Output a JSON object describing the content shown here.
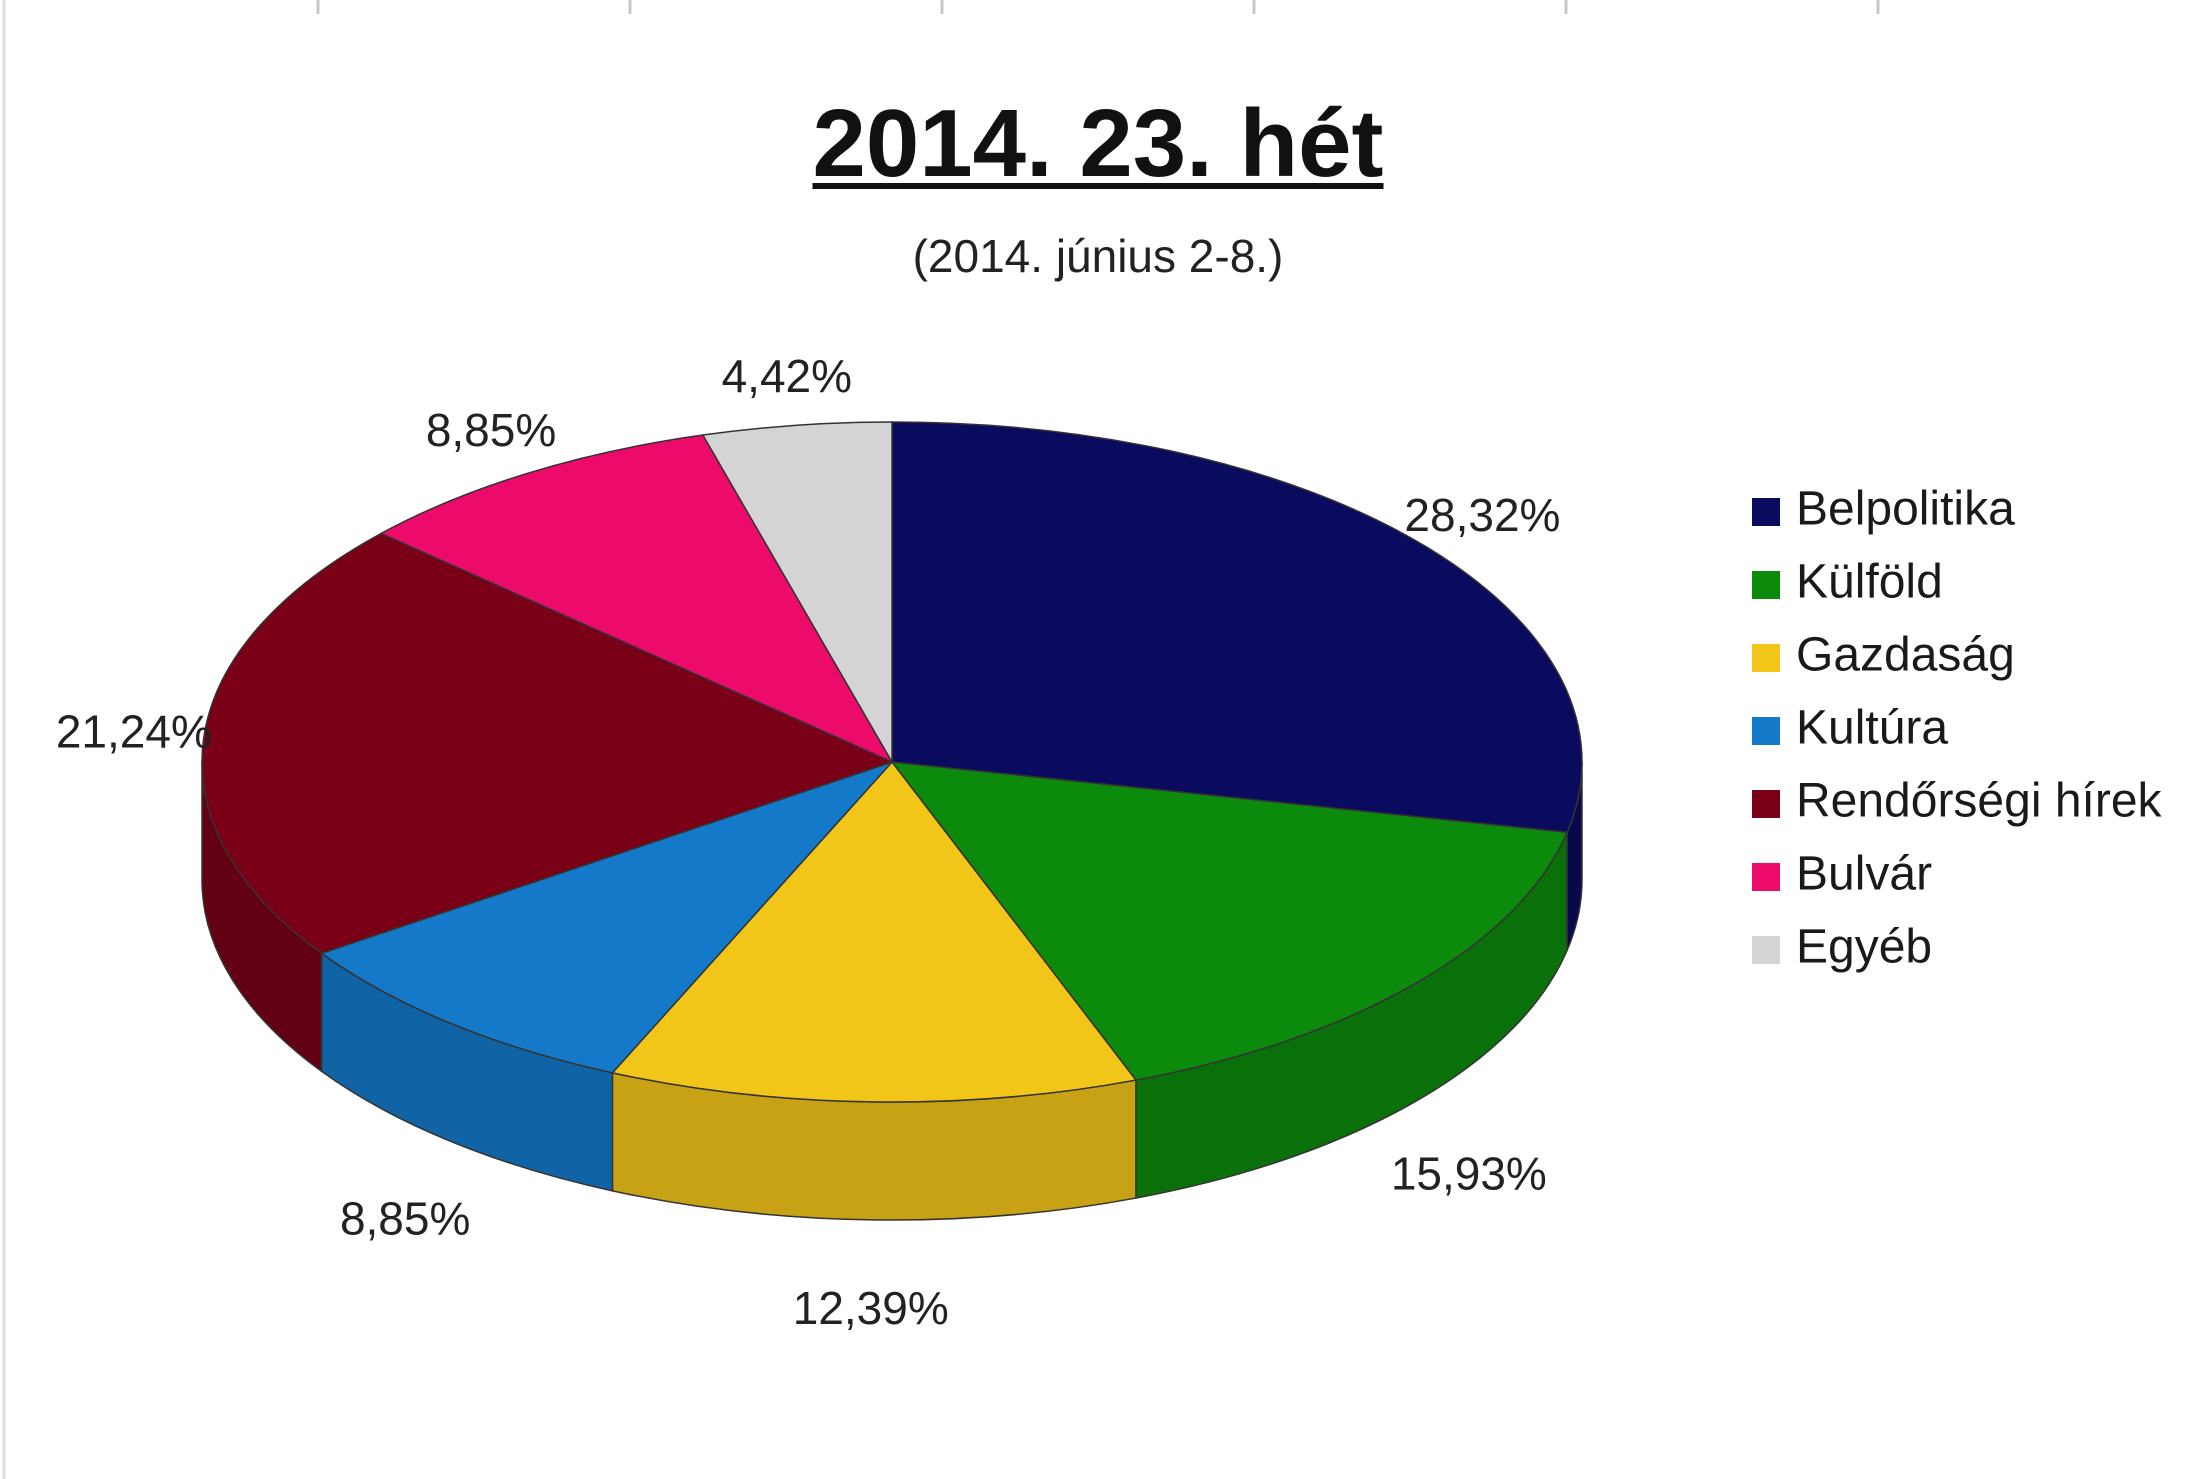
{
  "chart_data": {
    "type": "pie",
    "title": "2014. 23. hét",
    "subtitle": "(2014. június 2-8.)",
    "categories": [
      "Belpolitika",
      "Külföld",
      "Gazdaság",
      "Kultúra",
      "Rendőrségi hírek",
      "Bulvár",
      "Egyéb"
    ],
    "values": [
      28.32,
      15.93,
      12.39,
      8.85,
      21.24,
      8.85,
      4.42
    ],
    "labels": [
      "28,32%",
      "15,93%",
      "12,39%",
      "8,85%",
      "21,24%",
      "8,85%",
      "4,42%"
    ],
    "colors": [
      "#0a0a5e",
      "#0c8a0c",
      "#f2c618",
      "#1479c8",
      "#7a0018",
      "#ec0a6a",
      "#d4d4d4"
    ],
    "style": "3d",
    "start_angle": "12 o'clock",
    "direction": "clockwise",
    "legend_position": "right"
  }
}
